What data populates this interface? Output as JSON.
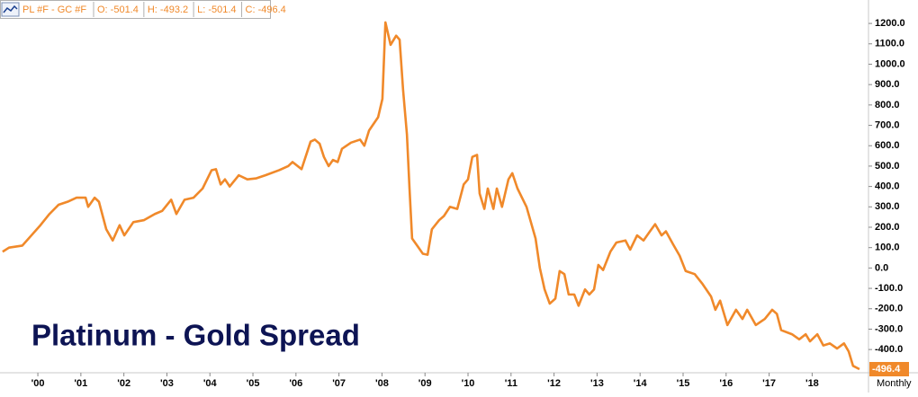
{
  "chart_data": {
    "type": "line",
    "title": "Platinum - Gold Spread",
    "symbol": "PL #F - GC #F",
    "ohlc": [
      "O: -501.4",
      "H: -493.2",
      "L: -501.4",
      "C: -496.4"
    ],
    "period": "Monthly",
    "x": [
      1999.18,
      1999.33,
      1999.64,
      1999.85,
      2000.06,
      2000.27,
      2000.48,
      2000.69,
      2000.9,
      2001.11,
      2001.17,
      2001.32,
      2001.42,
      2001.59,
      2001.74,
      2001.9,
      2002.01,
      2002.22,
      2002.47,
      2002.72,
      2002.89,
      2003.1,
      2003.22,
      2003.41,
      2003.62,
      2003.83,
      2004.04,
      2004.14,
      2004.25,
      2004.35,
      2004.46,
      2004.67,
      2004.87,
      2005.08,
      2005.29,
      2005.61,
      2005.82,
      2005.92,
      2006.13,
      2006.34,
      2006.44,
      2006.55,
      2006.65,
      2006.76,
      2006.86,
      2006.97,
      2007.07,
      2007.28,
      2007.49,
      2007.59,
      2007.7,
      2007.91,
      2008.01,
      2008.08,
      2008.2,
      2008.33,
      2008.41,
      2008.49,
      2008.58,
      2008.64,
      2008.7,
      2008.85,
      2008.95,
      2009.06,
      2009.16,
      2009.33,
      2009.44,
      2009.58,
      2009.75,
      2009.9,
      2010.0,
      2010.1,
      2010.21,
      2010.27,
      2010.38,
      2010.46,
      2010.59,
      2010.67,
      2010.79,
      2010.94,
      2011.03,
      2011.15,
      2011.36,
      2011.57,
      2011.67,
      2011.78,
      2011.9,
      2012.03,
      2012.13,
      2012.24,
      2012.34,
      2012.47,
      2012.57,
      2012.72,
      2012.82,
      2012.93,
      2013.03,
      2013.14,
      2013.31,
      2013.45,
      2013.66,
      2013.77,
      2013.93,
      2014.08,
      2014.23,
      2014.35,
      2014.5,
      2014.6,
      2014.77,
      2014.92,
      2015.06,
      2015.27,
      2015.44,
      2015.65,
      2015.75,
      2015.86,
      2016.03,
      2016.23,
      2016.38,
      2016.49,
      2016.69,
      2016.9,
      2017.07,
      2017.18,
      2017.28,
      2017.53,
      2017.7,
      2017.85,
      2017.95,
      2018.12,
      2018.26,
      2018.41,
      2018.58,
      2018.74,
      2018.85,
      2018.95,
      2019.1
    ],
    "series": [
      {
        "name": "PL #F - GC #F",
        "color": "#f0892a",
        "values": [
          80,
          100,
          110,
          160,
          210,
          265,
          310,
          325,
          345,
          345,
          300,
          345,
          325,
          190,
          135,
          210,
          160,
          225,
          235,
          265,
          280,
          335,
          265,
          335,
          345,
          390,
          480,
          485,
          410,
          435,
          400,
          455,
          435,
          440,
          455,
          480,
          500,
          520,
          485,
          620,
          630,
          610,
          545,
          500,
          530,
          520,
          585,
          615,
          630,
          600,
          675,
          740,
          830,
          1205,
          1095,
          1140,
          1120,
          875,
          655,
          390,
          145,
          100,
          70,
          65,
          190,
          235,
          255,
          300,
          290,
          410,
          435,
          545,
          555,
          365,
          290,
          390,
          290,
          390,
          300,
          435,
          465,
          390,
          300,
          145,
          0,
          -105,
          -175,
          -150,
          -15,
          -30,
          -130,
          -130,
          -185,
          -105,
          -130,
          -105,
          15,
          -10,
          80,
          125,
          135,
          90,
          160,
          135,
          180,
          215,
          160,
          180,
          115,
          60,
          -15,
          -30,
          -75,
          -140,
          -205,
          -160,
          -280,
          -205,
          -250,
          -205,
          -280,
          -250,
          -205,
          -225,
          -305,
          -325,
          -350,
          -325,
          -360,
          -325,
          -380,
          -370,
          -395,
          -370,
          -410,
          -480,
          -496.4
        ]
      }
    ],
    "xlim": [
      1999.12,
      2019.31
    ],
    "xticks": [
      {
        "value": 2000,
        "label": "'00"
      },
      {
        "value": 2001,
        "label": "'01"
      },
      {
        "value": 2002,
        "label": "'02"
      },
      {
        "value": 2003,
        "label": "'03"
      },
      {
        "value": 2004,
        "label": "'04"
      },
      {
        "value": 2005,
        "label": "'05"
      },
      {
        "value": 2006,
        "label": "'06"
      },
      {
        "value": 2007,
        "label": "'07"
      },
      {
        "value": 2008,
        "label": "'08"
      },
      {
        "value": 2009,
        "label": "'09"
      },
      {
        "value": 2010,
        "label": "'10"
      },
      {
        "value": 2011,
        "label": "'11"
      },
      {
        "value": 2012,
        "label": "'12"
      },
      {
        "value": 2013,
        "label": "'13"
      },
      {
        "value": 2014,
        "label": "'14"
      },
      {
        "value": 2015,
        "label": "'15"
      },
      {
        "value": 2016,
        "label": "'16"
      },
      {
        "value": 2017,
        "label": "'17"
      },
      {
        "value": 2018,
        "label": "'18"
      }
    ],
    "ylim": [
      -514,
      1315
    ],
    "yticks": [
      {
        "value": -400,
        "label": "-400.0"
      },
      {
        "value": -300,
        "label": "-300.0"
      },
      {
        "value": -200,
        "label": "-200.0"
      },
      {
        "value": -100,
        "label": "-100.0"
      },
      {
        "value": 0,
        "label": "0.0"
      },
      {
        "value": 100,
        "label": "100.0"
      },
      {
        "value": 200,
        "label": "200.0"
      },
      {
        "value": 300,
        "label": "300.0"
      },
      {
        "value": 400,
        "label": "400.0"
      },
      {
        "value": 500,
        "label": "500.0"
      },
      {
        "value": 600,
        "label": "600.0"
      },
      {
        "value": 700,
        "label": "700.0"
      },
      {
        "value": 800,
        "label": "800.0"
      },
      {
        "value": 900,
        "label": "900.0"
      },
      {
        "value": 1000,
        "label": "1000.0"
      },
      {
        "value": 1100,
        "label": "1100.0"
      },
      {
        "value": 1200,
        "label": "1200.0"
      }
    ]
  }
}
